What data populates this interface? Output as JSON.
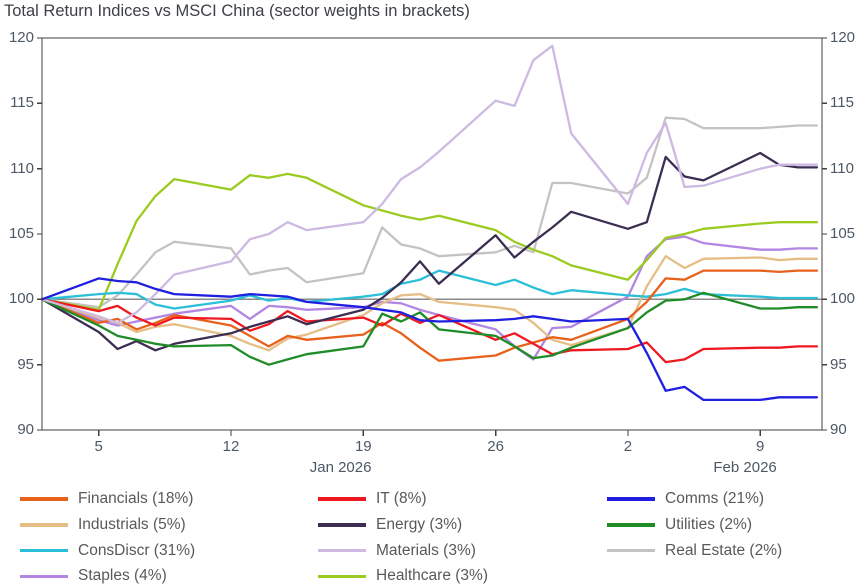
{
  "title": "Total Return Indices vs MSCI China (sector weights in brackets)",
  "chart_data": {
    "type": "line",
    "title": "Total Return Indices vs MSCI China (sector weights in brackets)",
    "ylim": [
      90,
      120
    ],
    "y_ticks": [
      90,
      95,
      100,
      105,
      110,
      115,
      120
    ],
    "baseline": 100,
    "grid": "off",
    "axis_color": "#3f3f3f",
    "baseline_color": "#8a8a8a",
    "x_labels": [
      "Jan 2",
      "Jan 5",
      "Jan 6",
      "Jan 7",
      "Jan 8",
      "Jan 9",
      "Jan 12",
      "Jan 13",
      "Jan 14",
      "Jan 15",
      "Jan 16",
      "Jan 19",
      "Jan 20",
      "Jan 21",
      "Jan 22",
      "Jan 23",
      "Jan 26",
      "Jan 27",
      "Jan 28",
      "Jan 29",
      "Jan 30",
      "Feb 2",
      "Feb 3",
      "Feb 4",
      "Feb 5",
      "Feb 6",
      "Feb 9",
      "Feb 10",
      "Feb 11",
      "Feb 12"
    ],
    "x_day_offsets": [
      0,
      3,
      4,
      5,
      6,
      7,
      10,
      11,
      12,
      13,
      14,
      17,
      18,
      19,
      20,
      21,
      24,
      25,
      26,
      27,
      28,
      31,
      32,
      33,
      34,
      35,
      38,
      39,
      40,
      41
    ],
    "x_ticks": [
      {
        "label": "5",
        "day_offset": 3
      },
      {
        "label": "12",
        "day_offset": 10
      },
      {
        "label": "19",
        "day_offset": 17
      },
      {
        "label": "26",
        "day_offset": 24
      },
      {
        "label": "2",
        "day_offset": 31
      },
      {
        "label": "9",
        "day_offset": 38
      }
    ],
    "month_labels": [
      {
        "label": "Jan 2026",
        "center_day_offset": 15.8
      },
      {
        "label": "Feb 2026",
        "center_day_offset": 37.2
      }
    ],
    "series": [
      {
        "name": "Financials",
        "weight": "18%",
        "legend_label": "Financials (18%)",
        "color": "#E8611C",
        "values": [
          100,
          98.2,
          98.5,
          97.7,
          98.2,
          98.8,
          98.0,
          97.2,
          96.4,
          97.2,
          96.9,
          97.3,
          98.2,
          97.4,
          96.3,
          95.3,
          95.7,
          96.3,
          96.7,
          97.1,
          96.9,
          98.5,
          99.8,
          101.6,
          101.5,
          102.2,
          102.2,
          102.1,
          102.2,
          102.2
        ]
      },
      {
        "name": "Industrials",
        "weight": "5%",
        "legend_label": "Industrials (5%)",
        "color": "#E5BE85",
        "values": [
          100,
          98.6,
          98.2,
          97.5,
          97.9,
          98.1,
          97.2,
          96.6,
          96.1,
          97.0,
          97.3,
          98.8,
          99.7,
          100.3,
          100.4,
          99.8,
          99.4,
          99.2,
          98.2,
          96.9,
          96.5,
          97.8,
          101.0,
          103.3,
          102.4,
          103.1,
          103.2,
          103.0,
          103.1,
          103.1
        ]
      },
      {
        "name": "ConsDiscr",
        "weight": "31%",
        "legend_label": "ConsDiscr (31%)",
        "color": "#2BBFD8",
        "values": [
          100,
          100.4,
          100.5,
          100.4,
          99.6,
          99.3,
          99.9,
          100.3,
          99.9,
          100.1,
          99.8,
          100.2,
          100.4,
          101.2,
          101.5,
          102.2,
          101.1,
          101.5,
          100.9,
          100.4,
          100.7,
          100.3,
          100.2,
          100.4,
          100.8,
          100.4,
          100.2,
          100.1,
          100.1,
          100.1
        ]
      },
      {
        "name": "Staples",
        "weight": "4%",
        "legend_label": "Staples (4%)",
        "color": "#B286E2",
        "values": [
          100,
          98.4,
          98.0,
          98.3,
          98.6,
          98.9,
          99.5,
          98.5,
          99.5,
          99.4,
          99.2,
          99.4,
          99.8,
          99.7,
          99.2,
          98.8,
          97.7,
          96.4,
          95.4,
          97.8,
          97.9,
          100.2,
          103.3,
          104.6,
          104.8,
          104.3,
          103.8,
          103.8,
          103.9,
          103.9
        ]
      },
      {
        "name": "IT",
        "weight": "8%",
        "legend_label": "IT (8%)",
        "color": "#F01820",
        "values": [
          100,
          99.1,
          99.5,
          98.6,
          98.0,
          98.6,
          98.5,
          97.6,
          98.1,
          99.1,
          98.3,
          98.6,
          98.0,
          98.9,
          98.2,
          98.8,
          96.9,
          97.4,
          96.6,
          95.8,
          96.1,
          96.2,
          96.7,
          95.2,
          95.4,
          96.2,
          96.3,
          96.3,
          96.4,
          96.4
        ]
      },
      {
        "name": "Energy",
        "weight": "3%",
        "legend_label": "Energy (3%)",
        "color": "#3C2E52",
        "values": [
          100,
          97.5,
          96.2,
          96.8,
          96.1,
          96.6,
          97.4,
          97.9,
          98.3,
          98.7,
          98.1,
          99.2,
          100.1,
          101.3,
          102.9,
          101.2,
          104.9,
          103.2,
          104.4,
          105.5,
          106.7,
          105.4,
          105.9,
          110.9,
          109.4,
          109.1,
          111.2,
          110.3,
          110.1,
          110.1
        ]
      },
      {
        "name": "Materials",
        "weight": "3%",
        "legend_label": "Materials (3%)",
        "color": "#CDB9E2",
        "values": [
          100,
          98.7,
          98.2,
          99.0,
          100.4,
          101.9,
          102.9,
          104.6,
          105.0,
          105.9,
          105.3,
          105.9,
          107.3,
          109.2,
          110.1,
          111.3,
          115.2,
          114.8,
          118.3,
          119.4,
          112.7,
          107.3,
          111.2,
          113.5,
          108.6,
          108.7,
          110.0,
          110.3,
          110.3,
          110.3
        ]
      },
      {
        "name": "Healthcare",
        "weight": "3%",
        "legend_label": "Healthcare (3%)",
        "color": "#9BCB20",
        "values": [
          100,
          99.2,
          102.7,
          106.0,
          107.9,
          109.2,
          108.4,
          109.5,
          109.3,
          109.6,
          109.3,
          107.2,
          106.8,
          106.4,
          106.1,
          106.4,
          105.3,
          104.4,
          103.8,
          103.3,
          102.6,
          101.5,
          103.0,
          104.7,
          105.0,
          105.4,
          105.8,
          105.9,
          105.9,
          105.9
        ]
      },
      {
        "name": "Comms",
        "weight": "21%",
        "legend_label": "Comms (21%)",
        "color": "#1F1FE0",
        "values": [
          100,
          101.6,
          101.4,
          101.3,
          100.8,
          100.4,
          100.2,
          100.4,
          100.3,
          100.2,
          99.8,
          99.4,
          99.2,
          99.0,
          98.4,
          98.3,
          98.4,
          98.5,
          98.7,
          98.5,
          98.3,
          98.5,
          95.9,
          93.0,
          93.3,
          92.3,
          92.3,
          92.5,
          92.5,
          92.5
        ]
      },
      {
        "name": "Utilities",
        "weight": "2%",
        "legend_label": "Utilities (2%)",
        "color": "#1F8C28",
        "values": [
          100,
          98.0,
          97.2,
          96.9,
          96.6,
          96.4,
          96.5,
          95.6,
          95.0,
          95.4,
          95.8,
          96.4,
          98.9,
          98.3,
          99.0,
          97.7,
          97.2,
          96.4,
          95.5,
          95.7,
          96.3,
          97.8,
          99.0,
          99.9,
          100.0,
          100.5,
          99.3,
          99.3,
          99.4,
          99.4
        ]
      },
      {
        "name": "Real Estate",
        "weight": "2%",
        "legend_label": "Real Estate (2%)",
        "color": "#C3C3C3",
        "values": [
          100,
          99.4,
          100.3,
          101.9,
          103.6,
          104.4,
          103.9,
          101.9,
          102.2,
          102.4,
          101.3,
          102.0,
          105.5,
          104.2,
          103.9,
          103.3,
          103.6,
          104.1,
          103.6,
          108.9,
          108.9,
          108.1,
          109.3,
          113.9,
          113.8,
          113.1,
          113.1,
          113.2,
          113.3,
          113.3
        ]
      }
    ],
    "draw_order": [
      10,
      3,
      1,
      7,
      2,
      0,
      4,
      5,
      9,
      6,
      8
    ],
    "legend_position": "bottom"
  },
  "legend": {
    "columns": [
      [
        0,
        1,
        2,
        3
      ],
      [
        4,
        5,
        6,
        7
      ],
      [
        8,
        9,
        10
      ]
    ]
  }
}
